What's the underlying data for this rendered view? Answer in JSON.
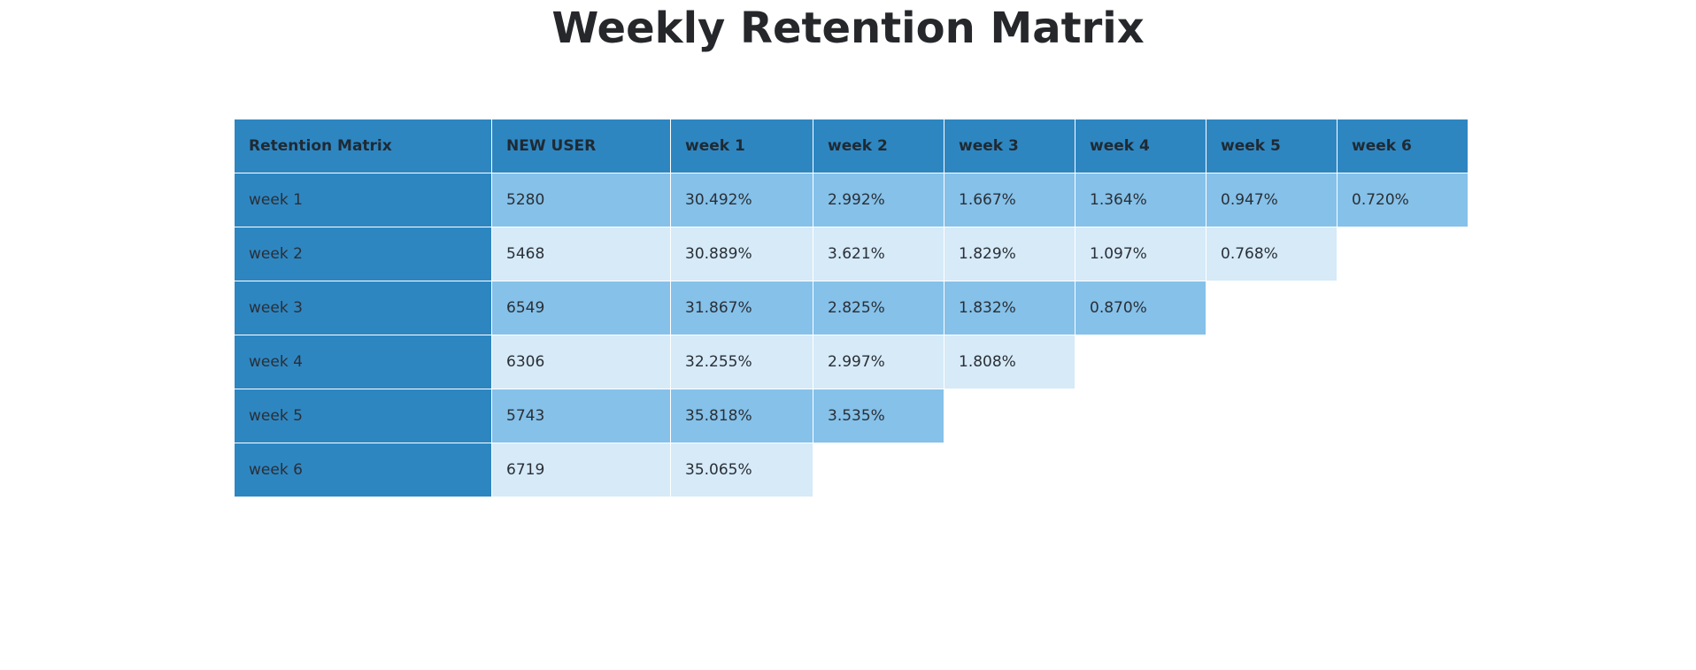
{
  "title": "Weekly Retention Matrix",
  "colors": {
    "header": "#2e86c1",
    "row_dark": "#85c1e9",
    "row_light": "#d6eaf8",
    "empty": "#ffffff"
  },
  "chart_data": {
    "type": "table",
    "title": "Weekly Retention Matrix",
    "columns": [
      "Retention Matrix",
      "NEW USER",
      "week 1",
      "week 2",
      "week 3",
      "week 4",
      "week 5",
      "week 6"
    ],
    "rows": [
      [
        "week 1",
        "5280",
        "30.492%",
        "2.992%",
        "1.667%",
        "1.364%",
        "0.947%",
        "0.720%"
      ],
      [
        "week 2",
        "5468",
        "30.889%",
        "3.621%",
        "1.829%",
        "1.097%",
        "0.768%",
        ""
      ],
      [
        "week 3",
        "6549",
        "31.867%",
        "2.825%",
        "1.832%",
        "0.870%",
        "",
        ""
      ],
      [
        "week 4",
        "6306",
        "32.255%",
        "2.997%",
        "1.808%",
        "",
        "",
        ""
      ],
      [
        "week 5",
        "5743",
        "35.818%",
        "3.535%",
        "",
        "",
        "",
        ""
      ],
      [
        "week 6",
        "6719",
        "35.065%",
        "",
        "",
        "",
        "",
        ""
      ]
    ]
  }
}
